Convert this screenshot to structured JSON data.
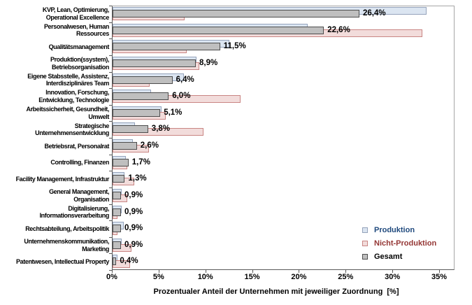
{
  "chart_data": {
    "type": "bar",
    "orientation": "horizontal",
    "xlabel": "Prozentualer Anteil der Unternehmen mit jeweiliger Zuordnung  [%]",
    "xlim": [
      0,
      35
    ],
    "x_ticks": [
      {
        "value": 0,
        "label": "0%"
      },
      {
        "value": 5,
        "label": "5%"
      },
      {
        "value": 10,
        "label": "10%"
      },
      {
        "value": 15,
        "label": "15%"
      },
      {
        "value": 20,
        "label": "20%"
      },
      {
        "value": 25,
        "label": "25%"
      },
      {
        "value": 30,
        "label": "30%"
      },
      {
        "value": 35,
        "label": "35%"
      }
    ],
    "grid": false,
    "legend_position": "inside-bottom-right",
    "categories": [
      {
        "lines": [
          "KVP, Lean, Optimierung,",
          "Operational Excellence"
        ]
      },
      {
        "lines": [
          "Personalwesen, Human",
          "Ressources"
        ]
      },
      {
        "lines": [
          "Qualitätsmanagement"
        ]
      },
      {
        "lines": [
          "Produktion(ssystem),",
          "Betriebsorganisation"
        ]
      },
      {
        "lines": [
          "Eigene Stabsstelle, Assistenz,",
          "Interdisziplinäres Team"
        ]
      },
      {
        "lines": [
          "Innovation, Forschung,",
          "Entwicklung, Technologie"
        ]
      },
      {
        "lines": [
          "Arbeitssicherheit, Gesundheit,",
          "Umwelt"
        ]
      },
      {
        "lines": [
          "Strategische",
          "Unternehmensentwicklung"
        ]
      },
      {
        "lines": [
          "Betriebsrat, Personalrat"
        ]
      },
      {
        "lines": [
          "Controlling, Finanzen"
        ]
      },
      {
        "lines": [
          "Facility Management, Infrastruktur"
        ]
      },
      {
        "lines": [
          "General Management,",
          "Organisation"
        ]
      },
      {
        "lines": [
          "Digitalisierung,",
          "Informationsverarbeitung"
        ]
      },
      {
        "lines": [
          "Rechtsabteilung, Arbeitspolitik"
        ]
      },
      {
        "lines": [
          "Unternehmenskommunikation,",
          "Marketing"
        ]
      },
      {
        "lines": [
          "Patentwesen, Intellectual Property"
        ]
      }
    ],
    "series": [
      {
        "name": "Produktion",
        "fill": "#DBE5F1",
        "border": "#95A3BB",
        "text_color": "#1F497D",
        "values": [
          33.6,
          20.9,
          12.5,
          9.0,
          7.6,
          4.1,
          5.2,
          2.4,
          2.2,
          1.4,
          1.3,
          1.0,
          1.0,
          1.2,
          1.0,
          0.5
        ]
      },
      {
        "name": "Nicht-Produktion",
        "fill": "#F2DCDB",
        "border": "#C98583",
        "text_color": "#943634",
        "values": [
          7.7,
          33.1,
          7.9,
          9.3,
          4.0,
          13.7,
          5.7,
          9.7,
          3.9,
          1.6,
          2.3,
          1.6,
          0.5,
          0.5,
          2.0,
          1.9
        ]
      },
      {
        "name": "Gesamt",
        "fill": "#BFBFBF",
        "border": "#4D4D4D",
        "text_color": "#000000",
        "values": [
          26.4,
          22.6,
          11.5,
          8.9,
          6.4,
          6.0,
          5.1,
          3.8,
          2.6,
          1.7,
          1.3,
          0.9,
          0.9,
          0.9,
          0.9,
          0.4
        ]
      }
    ],
    "data_labels": [
      "26,4%",
      "22,6%",
      "11,5%",
      "8,9%",
      "6,4%",
      "6,0%",
      "5,1%",
      "3,8%",
      "2,6%",
      "1,7%",
      "1,3%",
      "0,9%",
      "0,9%",
      "0,9%",
      "0,9%",
      "0,4%"
    ],
    "data_label_series": "Gesamt"
  }
}
